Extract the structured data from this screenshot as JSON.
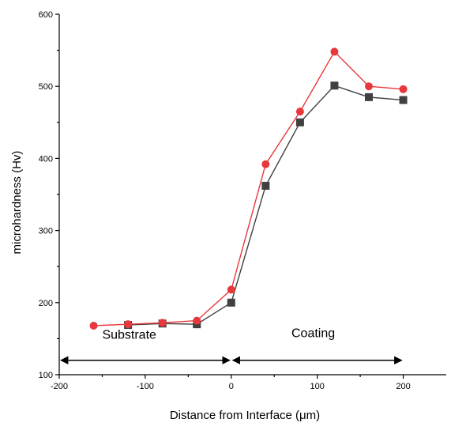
{
  "chart_data": {
    "type": "line",
    "xlabel": "Distance from Interface (μm)",
    "ylabel": "microhardness (Hv)",
    "xlim": [
      -200,
      250
    ],
    "ylim": [
      100,
      600
    ],
    "xticks": [
      -200,
      -100,
      0,
      100,
      200
    ],
    "yticks": [
      100,
      200,
      300,
      400,
      500,
      600
    ],
    "grid": false,
    "colors": {
      "series_red": "#e8383d",
      "series_gray": "#404040",
      "axis": "#000000"
    },
    "series": [
      {
        "color": "#e8383d",
        "marker": "circle",
        "points": [
          {
            "x": -160,
            "y": 168
          },
          {
            "x": -120,
            "y": 170
          },
          {
            "x": -80,
            "y": 172
          },
          {
            "x": -40,
            "y": 175
          },
          {
            "x": 0,
            "y": 218
          },
          {
            "x": 40,
            "y": 392
          },
          {
            "x": 80,
            "y": 465
          },
          {
            "x": 120,
            "y": 548
          },
          {
            "x": 160,
            "y": 500
          },
          {
            "x": 200,
            "y": 496
          }
        ]
      },
      {
        "color": "#404040",
        "marker": "square",
        "points": [
          {
            "x": -120,
            "y": 169
          },
          {
            "x": -80,
            "y": 171
          },
          {
            "x": -40,
            "y": 170
          },
          {
            "x": 0,
            "y": 200
          },
          {
            "x": 40,
            "y": 362
          },
          {
            "x": 80,
            "y": 450
          },
          {
            "x": 120,
            "y": 501
          },
          {
            "x": 160,
            "y": 485
          },
          {
            "x": 200,
            "y": 481
          }
        ]
      }
    ],
    "annotations": {
      "substrate": {
        "text": "Substrate",
        "x_from": -200,
        "x_to": 0,
        "text_x": -150,
        "text_y": 150,
        "arrow_y": 120
      },
      "coating": {
        "text": "Coating",
        "x_from": 0,
        "x_to": 200,
        "text_x": 70,
        "text_y": 152,
        "arrow_y": 120
      }
    }
  }
}
